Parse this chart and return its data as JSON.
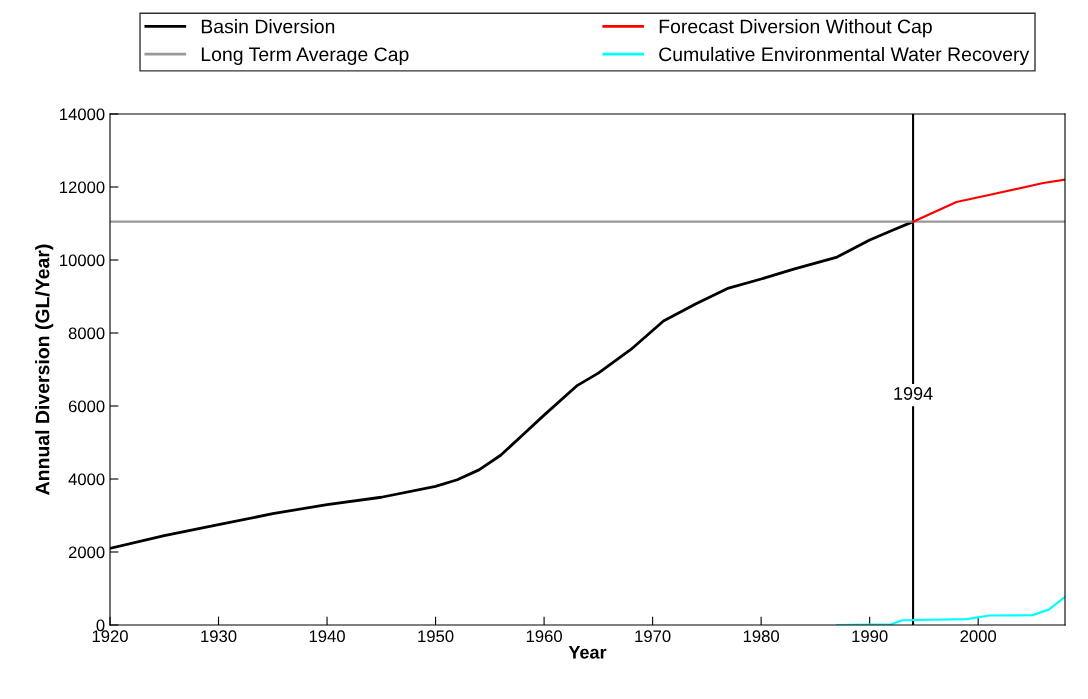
{
  "chart_data": {
    "type": "line",
    "xlabel": "Year",
    "ylabel": "Annual Diversion (GL/Year)",
    "xlim": [
      1920,
      2008
    ],
    "xticks": [
      1920,
      1930,
      1940,
      1950,
      1960,
      1970,
      1980,
      1990,
      2000
    ],
    "ylim": [
      0,
      14000
    ],
    "yticks": [
      0,
      2000,
      4000,
      6000,
      8000,
      10000,
      12000,
      14000
    ],
    "grid": false,
    "legend": "top",
    "marker": "none",
    "line_style": "solid",
    "series": [
      {
        "name": "Basin Diversion",
        "color": "#000000",
        "x": [
          1920,
          1925,
          1930,
          1935,
          1940,
          1945,
          1950,
          1952,
          1954,
          1956,
          1958,
          1960,
          1963,
          1965,
          1968,
          1971,
          1974,
          1977,
          1980,
          1983,
          1987,
          1990,
          1992,
          1994
        ],
        "values": [
          2100,
          2450,
          2750,
          3050,
          3300,
          3500,
          3800,
          3980,
          4250,
          4650,
          5200,
          5750,
          6550,
          6900,
          7550,
          8330,
          8800,
          9230,
          9480,
          9750,
          10080,
          10550,
          10800,
          11050
        ]
      },
      {
        "name": "Long Term Average Cap",
        "color": "#999999",
        "x": [
          1920,
          2008
        ],
        "values": [
          11050,
          11050
        ]
      },
      {
        "name": "Forecast Diversion Without Cap",
        "color": "#ff0000",
        "x": [
          1994,
          1998,
          2001,
          2006,
          2008
        ],
        "values": [
          11050,
          11590,
          11780,
          12110,
          12200
        ]
      },
      {
        "name": "Cumulative Environmental Water Recovery",
        "color": "#00ffff",
        "x": [
          1987,
          1992,
          1993,
          1999,
          2001,
          2005,
          2006.5,
          2008
        ],
        "values": [
          0,
          20,
          130,
          160,
          260,
          270,
          420,
          770
        ]
      }
    ],
    "ref_lines": [
      {
        "axis": "x",
        "value": 1994,
        "label": "1994",
        "color": "#000000",
        "line_style": "solid"
      }
    ]
  }
}
